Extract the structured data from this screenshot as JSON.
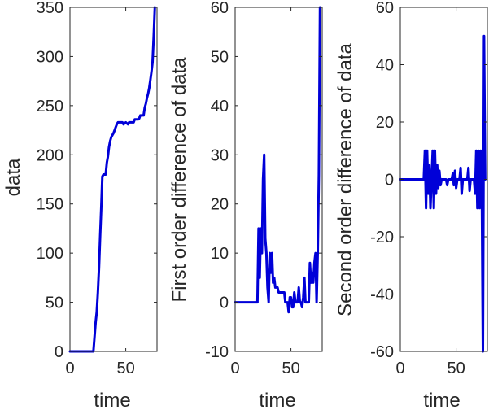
{
  "chart_data": [
    {
      "type": "line",
      "xlabel": "time",
      "ylabel": "data",
      "xlim": [
        0,
        78
      ],
      "ylim": [
        0,
        350
      ],
      "xticks": [
        0,
        50
      ],
      "yticks": [
        0,
        50,
        100,
        150,
        200,
        250,
        300,
        350
      ],
      "color": "#0000d8",
      "grid": false,
      "x": [
        0,
        1,
        2,
        3,
        4,
        5,
        6,
        7,
        8,
        9,
        10,
        11,
        12,
        13,
        14,
        15,
        16,
        17,
        18,
        19,
        20,
        21,
        22,
        23,
        24,
        25,
        26,
        27,
        28,
        29,
        30,
        31,
        32,
        33,
        34,
        35,
        36,
        37,
        38,
        39,
        40,
        41,
        42,
        43,
        44,
        45,
        46,
        47,
        48,
        49,
        50,
        51,
        52,
        53,
        54,
        55,
        56,
        57,
        58,
        59,
        60,
        61,
        62,
        63,
        64,
        65,
        66,
        67,
        68,
        69,
        70,
        71,
        72,
        73,
        74,
        75,
        76
      ],
      "y": [
        0,
        0,
        0,
        0,
        0,
        0,
        0,
        0,
        0,
        0,
        0,
        0,
        0,
        0,
        0,
        0,
        0,
        0,
        0,
        0,
        0,
        0,
        15,
        30,
        40,
        60,
        85,
        115,
        145,
        178,
        180,
        180,
        180,
        192,
        198,
        208,
        214,
        218,
        220,
        222,
        225,
        228,
        231,
        233,
        233,
        233,
        233,
        233,
        231,
        232,
        233,
        232,
        231,
        233,
        233,
        233,
        233,
        233,
        236,
        236,
        236,
        236,
        237,
        240,
        240,
        240,
        240,
        248,
        252,
        258,
        262,
        268,
        276,
        284,
        294,
        320,
        350
      ]
    },
    {
      "type": "line",
      "xlabel": "time",
      "ylabel": "First order difference of data",
      "xlim": [
        0,
        78
      ],
      "ylim": [
        -10,
        60
      ],
      "xticks": [
        0,
        50
      ],
      "yticks": [
        -10,
        0,
        10,
        20,
        30,
        40,
        50,
        60
      ],
      "color": "#0000d8",
      "grid": false,
      "x": [
        0,
        1,
        2,
        3,
        4,
        5,
        6,
        7,
        8,
        9,
        10,
        11,
        12,
        13,
        14,
        15,
        16,
        17,
        18,
        19,
        20,
        21,
        22,
        23,
        24,
        25,
        26,
        27,
        28,
        29,
        30,
        31,
        32,
        33,
        34,
        35,
        36,
        37,
        38,
        39,
        40,
        41,
        42,
        43,
        44,
        45,
        46,
        47,
        48,
        49,
        50,
        51,
        52,
        53,
        54,
        55,
        56,
        57,
        58,
        59,
        60,
        61,
        62,
        63,
        64,
        65,
        66,
        67,
        68,
        69,
        70,
        71,
        72,
        73,
        74,
        75,
        76
      ],
      "y": [
        0,
        0,
        0,
        0,
        0,
        0,
        0,
        0,
        0,
        0,
        0,
        0,
        0,
        0,
        0,
        0,
        0,
        0,
        0,
        0,
        0,
        15,
        5,
        15,
        10,
        25,
        30,
        13,
        10,
        3,
        0,
        10,
        6,
        10,
        4,
        5,
        3,
        3,
        3,
        2,
        2,
        2,
        2,
        2,
        2,
        0,
        0,
        0,
        -2,
        1,
        1,
        -1,
        -1,
        2,
        0,
        0,
        0,
        3,
        0,
        0,
        -1,
        1,
        5,
        0,
        0,
        0,
        0,
        8,
        4,
        6,
        4,
        8,
        10,
        0,
        10,
        26,
        60
      ]
    },
    {
      "type": "line",
      "xlabel": "time",
      "ylabel": "Second order difference of data",
      "xlim": [
        0,
        78
      ],
      "ylim": [
        -60,
        60
      ],
      "xticks": [
        0,
        50
      ],
      "yticks": [
        -60,
        -40,
        -20,
        0,
        20,
        40,
        60
      ],
      "color": "#0000d8",
      "grid": false,
      "x": [
        0,
        1,
        2,
        3,
        4,
        5,
        6,
        7,
        8,
        9,
        10,
        11,
        12,
        13,
        14,
        15,
        16,
        17,
        18,
        19,
        20,
        21,
        22,
        23,
        24,
        25,
        26,
        27,
        28,
        29,
        30,
        31,
        32,
        33,
        34,
        35,
        36,
        37,
        38,
        39,
        40,
        41,
        42,
        43,
        44,
        45,
        46,
        47,
        48,
        49,
        50,
        51,
        52,
        53,
        54,
        55,
        56,
        57,
        58,
        59,
        60,
        61,
        62,
        63,
        64,
        65,
        66,
        67,
        68,
        69,
        70,
        71,
        72,
        73,
        74,
        75,
        76
      ],
      "y": [
        0,
        0,
        0,
        0,
        0,
        0,
        0,
        0,
        0,
        0,
        0,
        0,
        0,
        0,
        0,
        0,
        0,
        0,
        0,
        0,
        0,
        0,
        10,
        -10,
        10,
        -5,
        5,
        -10,
        0,
        10,
        -10,
        10,
        -5,
        5,
        -3,
        3,
        -2,
        0,
        0,
        0,
        0,
        0,
        -2,
        0,
        0,
        0,
        0,
        2,
        -2,
        3,
        -3,
        0,
        0,
        0,
        4,
        -5,
        0,
        0,
        0,
        0,
        0,
        4,
        -4,
        0,
        0,
        0,
        0,
        -5,
        10,
        -10,
        10,
        -10,
        10,
        0,
        -60,
        50,
        0
      ]
    }
  ]
}
